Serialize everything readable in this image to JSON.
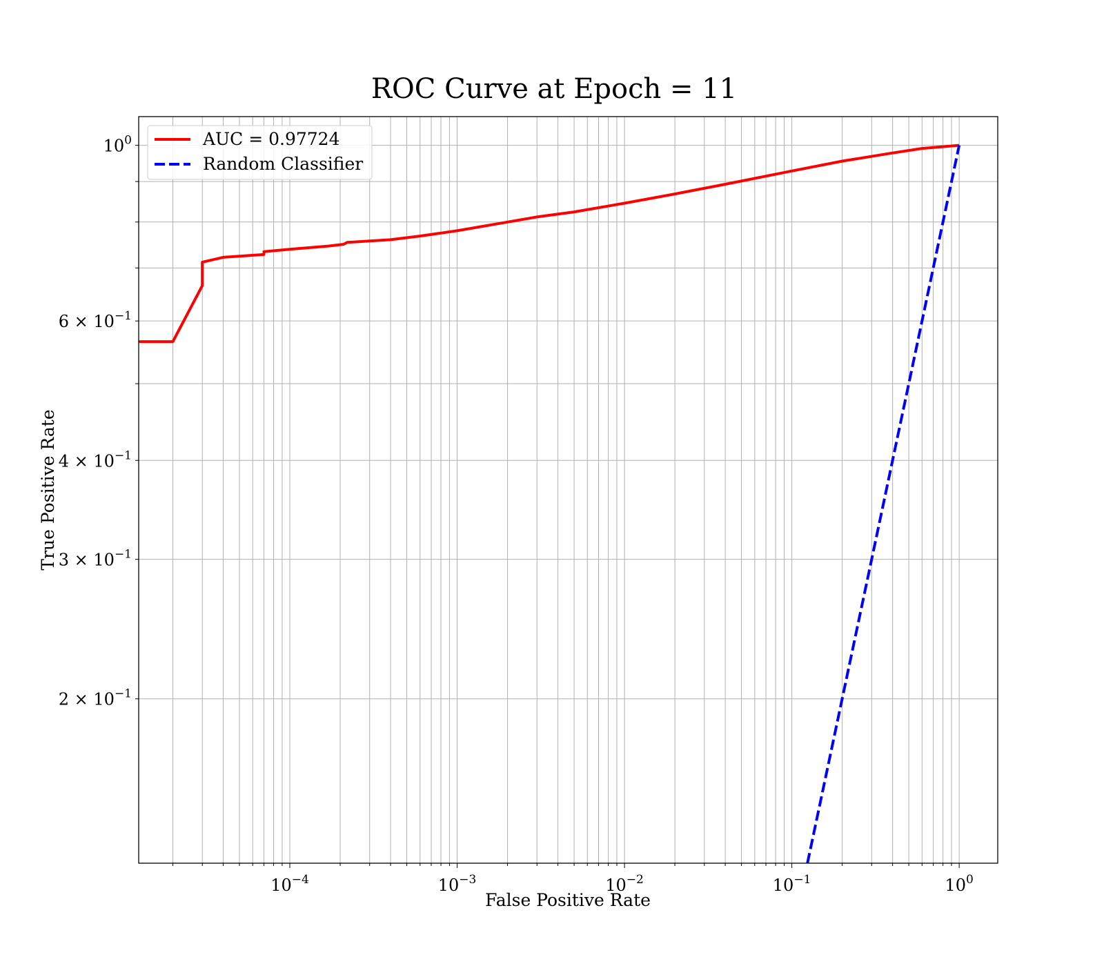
{
  "chart_data": {
    "type": "line",
    "title": "ROC Curve at Epoch = 11",
    "xlabel": "False Positive Rate",
    "ylabel": "True Positive Rate",
    "xscale": "log",
    "yscale": "log",
    "xlim": [
      1.25e-05,
      1.7
    ],
    "ylim": [
      0.124,
      1.087
    ],
    "grid": true,
    "grid_which": "both",
    "legend_position": "top-left",
    "x_ticks": [
      {
        "value": 0.0001,
        "base": "10",
        "exp": "−4"
      },
      {
        "value": 0.001,
        "base": "10",
        "exp": "−3"
      },
      {
        "value": 0.01,
        "base": "10",
        "exp": "−2"
      },
      {
        "value": 0.1,
        "base": "10",
        "exp": "−1"
      },
      {
        "value": 1,
        "base": "10",
        "exp": "0"
      }
    ],
    "y_ticks": [
      {
        "value": 1.0,
        "base": "10",
        "exp": "0"
      },
      {
        "value": 0.6,
        "base": "6 × 10",
        "exp": "−1"
      },
      {
        "value": 0.4,
        "base": "4 × 10",
        "exp": "−1"
      },
      {
        "value": 0.3,
        "base": "3 × 10",
        "exp": "−1"
      },
      {
        "value": 0.2,
        "base": "2 × 10",
        "exp": "−1"
      }
    ],
    "series": [
      {
        "name": "AUC = 0.97724",
        "color": "#ff0000",
        "style": "solid",
        "x": [
          1.25e-05,
          2e-05,
          3e-05,
          3e-05,
          4e-05,
          7e-05,
          7e-05,
          0.0001,
          0.00017,
          0.00021,
          0.00022,
          0.0003,
          0.0004,
          0.0006,
          0.001,
          0.002,
          0.003,
          0.005,
          0.01,
          0.02,
          0.04,
          0.1,
          0.2,
          0.4,
          0.6,
          1.0
        ],
        "y": [
          0.565,
          0.565,
          0.665,
          0.712,
          0.722,
          0.728,
          0.734,
          0.739,
          0.746,
          0.75,
          0.754,
          0.757,
          0.76,
          0.768,
          0.78,
          0.8,
          0.812,
          0.824,
          0.845,
          0.868,
          0.893,
          0.928,
          0.955,
          0.978,
          0.991,
          1.0
        ]
      },
      {
        "name": "Random Classifier",
        "color": "#0000ff",
        "style": "dashed",
        "x": [
          0.124,
          1.0
        ],
        "y": [
          0.124,
          1.0
        ]
      }
    ]
  }
}
